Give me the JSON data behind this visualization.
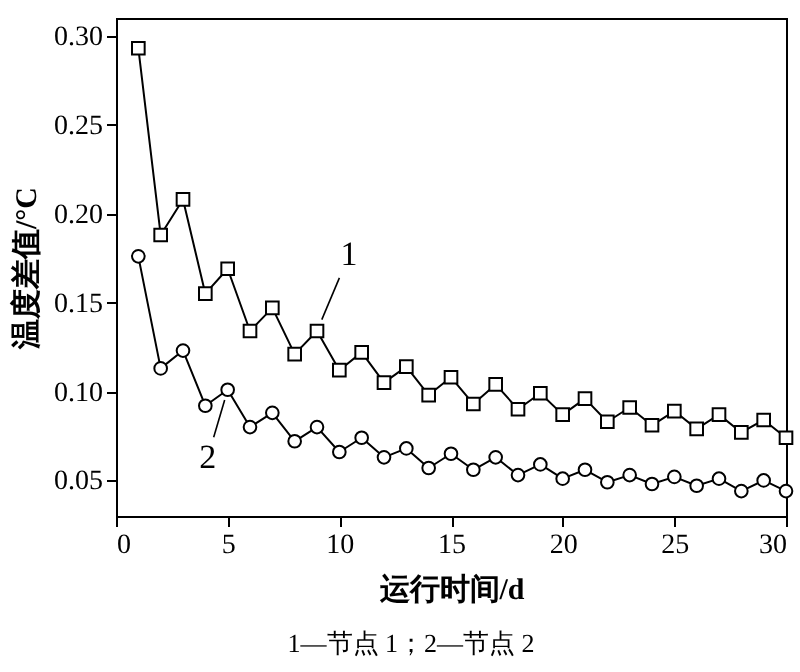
{
  "chart_data": {
    "type": "line",
    "xlabel": "运行时间/d",
    "ylabel": "温度差值/°C",
    "x": [
      1,
      2,
      3,
      4,
      5,
      6,
      7,
      8,
      9,
      10,
      11,
      12,
      13,
      14,
      15,
      16,
      17,
      18,
      19,
      20,
      21,
      22,
      23,
      24,
      25,
      26,
      27,
      28,
      29,
      30
    ],
    "series": [
      {
        "name": "1",
        "color": "#000000",
        "marker": "square",
        "values": [
          0.293,
          0.188,
          0.208,
          0.155,
          0.169,
          0.134,
          0.147,
          0.121,
          0.134,
          0.112,
          0.122,
          0.105,
          0.114,
          0.098,
          0.108,
          0.093,
          0.104,
          0.09,
          0.099,
          0.087,
          0.096,
          0.083,
          0.091,
          0.081,
          0.089,
          0.079,
          0.087,
          0.077,
          0.084,
          0.074
        ]
      },
      {
        "name": "2",
        "color": "#000000",
        "marker": "circle",
        "values": [
          0.176,
          0.113,
          0.123,
          0.092,
          0.101,
          0.08,
          0.088,
          0.072,
          0.08,
          0.066,
          0.074,
          0.063,
          0.068,
          0.057,
          0.065,
          0.056,
          0.063,
          0.053,
          0.059,
          0.051,
          0.056,
          0.049,
          0.053,
          0.048,
          0.052,
          0.047,
          0.051,
          0.044,
          0.05,
          0.044
        ]
      }
    ],
    "xlim": [
      0,
      30
    ],
    "xticks": [
      0,
      5,
      10,
      15,
      20,
      25,
      30
    ],
    "ylim": [
      0.03,
      0.31
    ],
    "yticks": [
      {
        "value": 0.05,
        "label": "0.05"
      },
      {
        "value": 0.1,
        "label": "0.10"
      },
      {
        "value": 0.15,
        "label": "0.15"
      },
      {
        "value": 0.2,
        "label": "0.20"
      },
      {
        "value": 0.25,
        "label": "0.25"
      },
      {
        "value": 0.3,
        "label": "0.30"
      }
    ],
    "grid": false,
    "line_style": "solid",
    "annotations": [
      "1—节点 1；2—节点 2"
    ]
  }
}
